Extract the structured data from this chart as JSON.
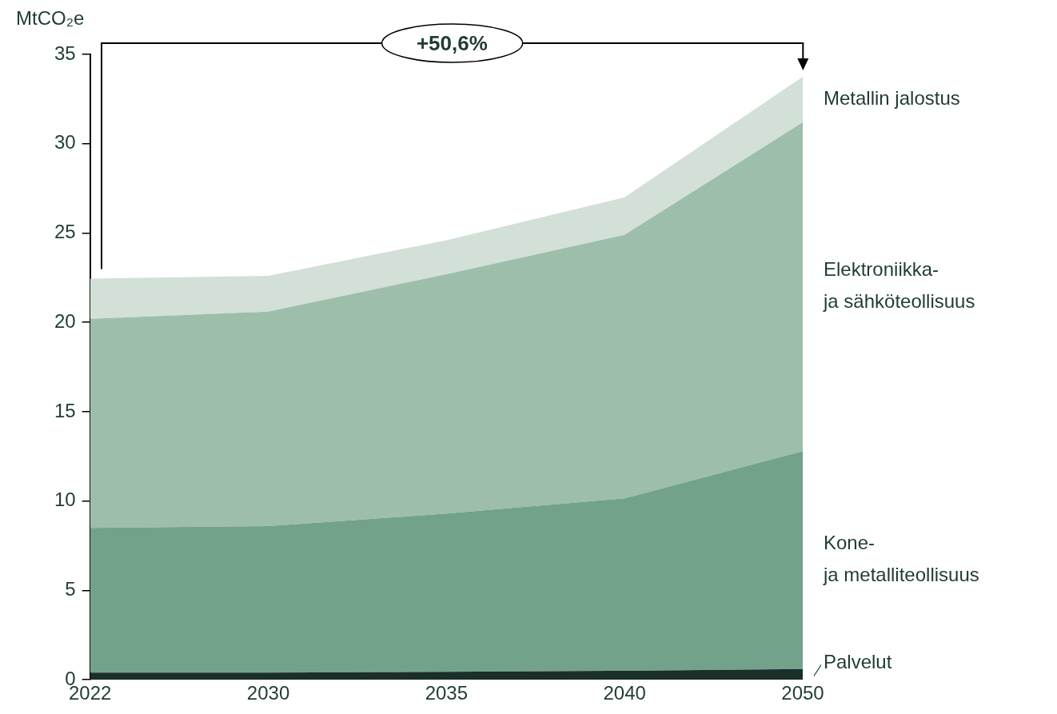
{
  "chart_data": {
    "type": "area",
    "stacked": true,
    "ylabel": "MtCO₂e",
    "categories": [
      "2022",
      "2030",
      "2035",
      "2040",
      "2050"
    ],
    "series": [
      {
        "name": "Palvelut",
        "color": "#1a2e2a",
        "values": [
          0.4,
          0.4,
          0.45,
          0.5,
          0.6
        ]
      },
      {
        "name": "Kone- ja metalliteollisuus",
        "color": "#72a38a",
        "values": [
          8.1,
          8.2,
          8.85,
          9.65,
          12.2
        ]
      },
      {
        "name": "Elektroniikka- ja sähköteollisuus",
        "color": "#9cbeaa",
        "values": [
          11.7,
          12.0,
          13.4,
          14.75,
          18.4
        ]
      },
      {
        "name": "Metallin jalostus",
        "color": "#d2e0d7",
        "values": [
          2.25,
          2.0,
          1.9,
          2.1,
          2.55
        ]
      }
    ],
    "ylim": [
      0,
      35
    ],
    "yticks": [
      0,
      5,
      10,
      15,
      20,
      25,
      30,
      35
    ],
    "grid": false,
    "legend": false,
    "annotations": [
      "+50,6%"
    ]
  }
}
